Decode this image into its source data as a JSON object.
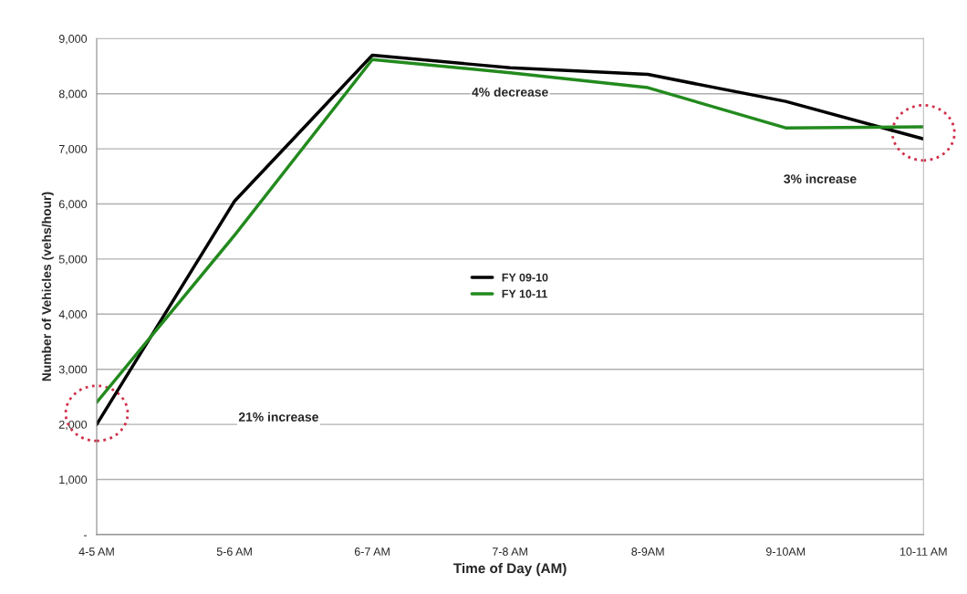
{
  "chart_data": {
    "type": "line",
    "xlabel": "Time of Day (AM)",
    "ylabel": "Number of Vehicles (vehs/hour)",
    "categories": [
      "4-5 AM",
      "5-6 AM",
      "6-7 AM",
      "7-8 AM",
      "8-9AM",
      "9-10AM",
      "10-11 AM"
    ],
    "series": [
      {
        "name": "FY 09-10",
        "color": "#000000",
        "values": [
          2000,
          6050,
          8700,
          8470,
          8350,
          7860,
          7180
        ]
      },
      {
        "name": "FY 10-11",
        "color": "#238a1e",
        "values": [
          2400,
          5430,
          8620,
          8380,
          8110,
          7380,
          7400
        ]
      }
    ],
    "ylim": [
      0,
      9000
    ],
    "yticks": [
      {
        "value": 0,
        "label": "-"
      },
      {
        "value": 1000,
        "label": "1,000"
      },
      {
        "value": 2000,
        "label": "2,000"
      },
      {
        "value": 3000,
        "label": "3,000"
      },
      {
        "value": 4000,
        "label": "4,000"
      },
      {
        "value": 5000,
        "label": "5,000"
      },
      {
        "value": 6000,
        "label": "6,000"
      },
      {
        "value": 7000,
        "label": "7,000"
      },
      {
        "value": 8000,
        "label": "8,000"
      },
      {
        "value": 9000,
        "label": "9,000"
      }
    ],
    "grid": "y",
    "legend": "center",
    "marker": "none",
    "line_style": "solid",
    "annotations": [
      "21% increase",
      "4% decrease",
      "3% increase"
    ]
  }
}
